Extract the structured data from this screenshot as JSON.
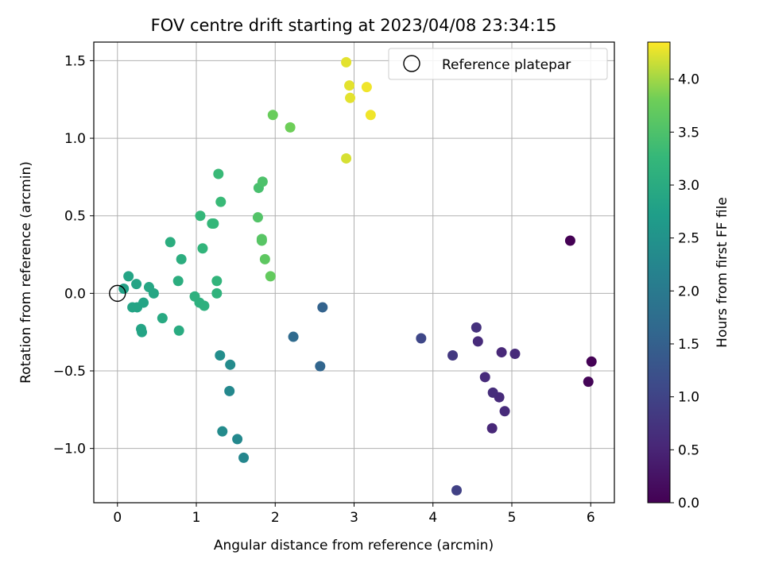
{
  "chart_data": {
    "type": "scatter",
    "title": "FOV centre drift starting at 2023/04/08 23:34:15",
    "xlabel": "Angular distance from reference (arcmin)",
    "ylabel": "Rotation from reference (arcmin)",
    "xlim": [
      -0.3,
      6.3
    ],
    "ylim": [
      -1.35,
      1.62
    ],
    "x_ticks": [
      0,
      1,
      2,
      3,
      4,
      5,
      6
    ],
    "y_ticks": [
      -1.0,
      -0.5,
      0.0,
      0.5,
      1.0,
      1.5
    ],
    "x_tick_labels": [
      "0",
      "1",
      "2",
      "3",
      "4",
      "5",
      "6"
    ],
    "y_tick_labels": [
      "−1.0",
      "−0.5",
      "0.0",
      "0.5",
      "1.0",
      "1.5"
    ],
    "grid": true,
    "legend": {
      "placement": "top-right",
      "entries": [
        "Reference platepar"
      ]
    },
    "reference_point": {
      "x": 0.0,
      "y": 0.0,
      "marker": "open-circle"
    },
    "colorbar": {
      "label": "Hours from first FF file",
      "range": [
        0.0,
        4.35
      ],
      "ticks": [
        0.0,
        0.5,
        1.0,
        1.5,
        2.0,
        2.5,
        3.0,
        3.5,
        4.0
      ],
      "tick_labels": [
        "0.0",
        "0.5",
        "1.0",
        "1.5",
        "2.0",
        "2.5",
        "3.0",
        "3.5",
        "4.0"
      ],
      "colormap": "viridis"
    },
    "points": [
      {
        "x": 5.74,
        "y": 0.34,
        "h": 0.0
      },
      {
        "x": 6.01,
        "y": -0.44,
        "h": 0.02
      },
      {
        "x": 5.97,
        "y": -0.57,
        "h": 0.05
      },
      {
        "x": 4.75,
        "y": -0.87,
        "h": 0.55
      },
      {
        "x": 4.91,
        "y": -0.76,
        "h": 0.6
      },
      {
        "x": 4.84,
        "y": -0.67,
        "h": 0.6
      },
      {
        "x": 4.76,
        "y": -0.64,
        "h": 0.65
      },
      {
        "x": 4.66,
        "y": -0.54,
        "h": 0.6
      },
      {
        "x": 4.55,
        "y": -0.22,
        "h": 0.7
      },
      {
        "x": 4.57,
        "y": -0.31,
        "h": 0.6
      },
      {
        "x": 4.87,
        "y": -0.38,
        "h": 0.55
      },
      {
        "x": 5.04,
        "y": -0.39,
        "h": 0.6
      },
      {
        "x": 4.25,
        "y": -0.4,
        "h": 0.8
      },
      {
        "x": 4.3,
        "y": -1.27,
        "h": 0.95
      },
      {
        "x": 3.85,
        "y": -0.29,
        "h": 1.05
      },
      {
        "x": 2.6,
        "y": -0.09,
        "h": 1.55
      },
      {
        "x": 2.57,
        "y": -0.47,
        "h": 1.6
      },
      {
        "x": 2.23,
        "y": -0.28,
        "h": 1.7
      },
      {
        "x": 1.6,
        "y": -1.06,
        "h": 2.25
      },
      {
        "x": 1.52,
        "y": -0.94,
        "h": 2.3
      },
      {
        "x": 1.33,
        "y": -0.89,
        "h": 2.35
      },
      {
        "x": 1.42,
        "y": -0.63,
        "h": 2.3
      },
      {
        "x": 1.43,
        "y": -0.46,
        "h": 2.35
      },
      {
        "x": 1.3,
        "y": -0.4,
        "h": 2.4
      },
      {
        "x": 0.3,
        "y": -0.23,
        "h": 2.85
      },
      {
        "x": 0.31,
        "y": -0.25,
        "h": 2.85
      },
      {
        "x": 0.19,
        "y": -0.09,
        "h": 2.85
      },
      {
        "x": 0.25,
        "y": -0.09,
        "h": 2.85
      },
      {
        "x": 0.33,
        "y": -0.06,
        "h": 2.85
      },
      {
        "x": 0.08,
        "y": 0.03,
        "h": 2.8
      },
      {
        "x": 0.14,
        "y": 0.11,
        "h": 2.85
      },
      {
        "x": 0.24,
        "y": 0.06,
        "h": 2.85
      },
      {
        "x": 0.4,
        "y": 0.04,
        "h": 2.9
      },
      {
        "x": 0.46,
        "y": 0.0,
        "h": 2.9
      },
      {
        "x": 0.57,
        "y": -0.16,
        "h": 2.95
      },
      {
        "x": 0.78,
        "y": -0.24,
        "h": 3.0
      },
      {
        "x": 0.77,
        "y": 0.08,
        "h": 3.05
      },
      {
        "x": 0.81,
        "y": 0.22,
        "h": 3.05
      },
      {
        "x": 0.67,
        "y": 0.33,
        "h": 3.05
      },
      {
        "x": 0.98,
        "y": -0.02,
        "h": 3.1
      },
      {
        "x": 1.04,
        "y": -0.06,
        "h": 3.1
      },
      {
        "x": 1.1,
        "y": -0.08,
        "h": 3.1
      },
      {
        "x": 1.26,
        "y": 0.0,
        "h": 3.15
      },
      {
        "x": 1.26,
        "y": 0.08,
        "h": 3.2
      },
      {
        "x": 1.08,
        "y": 0.29,
        "h": 3.2
      },
      {
        "x": 1.05,
        "y": 0.5,
        "h": 3.25
      },
      {
        "x": 1.2,
        "y": 0.45,
        "h": 3.25
      },
      {
        "x": 1.22,
        "y": 0.45,
        "h": 3.25
      },
      {
        "x": 1.31,
        "y": 0.59,
        "h": 3.3
      },
      {
        "x": 1.28,
        "y": 0.77,
        "h": 3.3
      },
      {
        "x": 1.79,
        "y": 0.68,
        "h": 3.45
      },
      {
        "x": 1.84,
        "y": 0.72,
        "h": 3.5
      },
      {
        "x": 1.78,
        "y": 0.49,
        "h": 3.55
      },
      {
        "x": 1.83,
        "y": 0.34,
        "h": 3.6
      },
      {
        "x": 1.83,
        "y": 0.35,
        "h": 3.6
      },
      {
        "x": 1.87,
        "y": 0.22,
        "h": 3.65
      },
      {
        "x": 1.94,
        "y": 0.11,
        "h": 3.7
      },
      {
        "x": 1.97,
        "y": 1.15,
        "h": 3.75
      },
      {
        "x": 2.19,
        "y": 1.07,
        "h": 3.8
      },
      {
        "x": 2.9,
        "y": 0.87,
        "h": 4.2
      },
      {
        "x": 2.9,
        "y": 1.49,
        "h": 4.25
      },
      {
        "x": 2.94,
        "y": 1.34,
        "h": 4.25
      },
      {
        "x": 2.95,
        "y": 1.26,
        "h": 4.25
      },
      {
        "x": 3.16,
        "y": 1.33,
        "h": 4.3
      },
      {
        "x": 3.21,
        "y": 1.15,
        "h": 4.3
      }
    ]
  }
}
